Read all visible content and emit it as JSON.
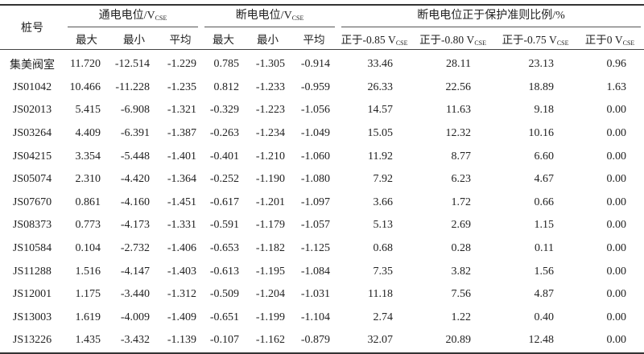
{
  "table": {
    "header": {
      "pile_no": "桩号",
      "on_potential": {
        "label": "通电电位/V",
        "sub": "CSE"
      },
      "off_potential": {
        "label": "断电电位/V",
        "sub": "CSE"
      },
      "ratio": {
        "label": "断电电位正于保护准则比例/%"
      },
      "stats": [
        "最大",
        "最小",
        "平均",
        "最大",
        "最小",
        "平均"
      ],
      "criteria": [
        {
          "label": "正于-0.85 V",
          "sub": "CSE"
        },
        {
          "label": "正于-0.80 V",
          "sub": "CSE"
        },
        {
          "label": "正于-0.75 V",
          "sub": "CSE"
        },
        {
          "label": "正于0 V",
          "sub": "CSE"
        }
      ]
    },
    "rows": [
      [
        "集美阀室",
        "11.720",
        "-12.514",
        "-1.229",
        "0.785",
        "-1.305",
        "-0.914",
        "33.46",
        "28.11",
        "23.13",
        "0.96"
      ],
      [
        "JS01042",
        "10.466",
        "-11.228",
        "-1.235",
        "0.812",
        "-1.233",
        "-0.959",
        "26.33",
        "22.56",
        "18.89",
        "1.63"
      ],
      [
        "JS02013",
        "5.415",
        "-6.908",
        "-1.321",
        "-0.329",
        "-1.223",
        "-1.056",
        "14.57",
        "11.63",
        "9.18",
        "0.00"
      ],
      [
        "JS03264",
        "4.409",
        "-6.391",
        "-1.387",
        "-0.263",
        "-1.234",
        "-1.049",
        "15.05",
        "12.32",
        "10.16",
        "0.00"
      ],
      [
        "JS04215",
        "3.354",
        "-5.448",
        "-1.401",
        "-0.401",
        "-1.210",
        "-1.060",
        "11.92",
        "8.77",
        "6.60",
        "0.00"
      ],
      [
        "JS05074",
        "2.310",
        "-4.420",
        "-1.364",
        "-0.252",
        "-1.190",
        "-1.080",
        "7.92",
        "6.23",
        "4.67",
        "0.00"
      ],
      [
        "JS07670",
        "0.861",
        "-4.160",
        "-1.451",
        "-0.617",
        "-1.201",
        "-1.097",
        "3.66",
        "1.72",
        "0.66",
        "0.00"
      ],
      [
        "JS08373",
        "0.773",
        "-4.173",
        "-1.331",
        "-0.591",
        "-1.179",
        "-1.057",
        "5.13",
        "2.69",
        "1.15",
        "0.00"
      ],
      [
        "JS10584",
        "0.104",
        "-2.732",
        "-1.406",
        "-0.653",
        "-1.182",
        "-1.125",
        "0.68",
        "0.28",
        "0.11",
        "0.00"
      ],
      [
        "JS11288",
        "1.516",
        "-4.147",
        "-1.403",
        "-0.613",
        "-1.195",
        "-1.084",
        "7.35",
        "3.82",
        "1.56",
        "0.00"
      ],
      [
        "JS12001",
        "1.175",
        "-3.440",
        "-1.312",
        "-0.509",
        "-1.204",
        "-1.031",
        "11.18",
        "7.56",
        "4.87",
        "0.00"
      ],
      [
        "JS13003",
        "1.619",
        "-4.009",
        "-1.409",
        "-0.651",
        "-1.199",
        "-1.104",
        "2.74",
        "1.22",
        "0.40",
        "0.00"
      ],
      [
        "JS13226",
        "1.435",
        "-3.432",
        "-1.139",
        "-0.107",
        "-1.162",
        "-0.879",
        "32.07",
        "20.89",
        "12.48",
        "0.00"
      ]
    ]
  }
}
